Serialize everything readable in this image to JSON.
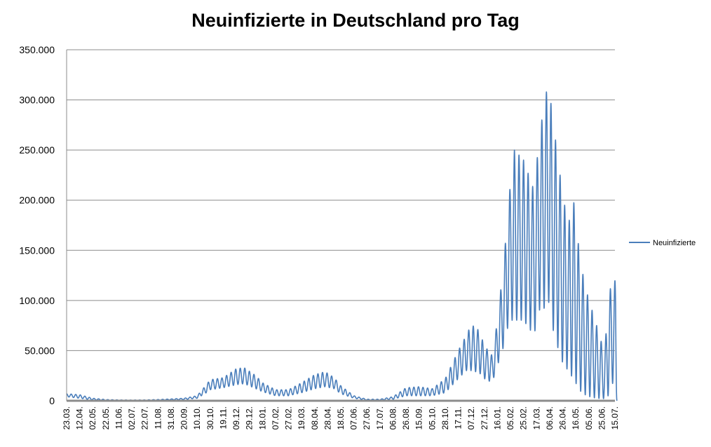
{
  "chart_data": {
    "type": "line",
    "title": "Neuinfizierte in Deutschland pro Tag",
    "xlabel": "",
    "ylabel": "",
    "ylim": [
      0,
      350000
    ],
    "yticks": [
      0,
      50000,
      100000,
      150000,
      200000,
      250000,
      300000,
      350000
    ],
    "ytick_labels": [
      "0",
      "50.000",
      "100.000",
      "150.000",
      "200.000",
      "250.000",
      "300.000",
      "350.000"
    ],
    "x_tick_labels": [
      "23.03.",
      "12.04.",
      "02.05.",
      "22.05.",
      "11.06.",
      "02.07.",
      "22.07.",
      "11.08.",
      "31.08.",
      "20.09.",
      "10.10.",
      "30.10.",
      "19.11.",
      "09.12.",
      "29.12.",
      "18.01.",
      "07.02.",
      "27.02.",
      "19.03.",
      "08.04.",
      "28.04.",
      "18.05.",
      "07.06.",
      "27.06.",
      "17.07.",
      "06.08.",
      "26.08.",
      "15.09.",
      "05.10.",
      "28.10.",
      "17.11.",
      "07.12.",
      "27.12.",
      "16.01.",
      "05.02.",
      "25.02.",
      "17.03.",
      "06.04.",
      "26.04.",
      "16.05.",
      "05.06.",
      "25.06.",
      "15.07."
    ],
    "grid": true,
    "legend_position": "right",
    "series": [
      {
        "name": "Neuinfizierte",
        "color": "#4a7ebb",
        "envelope": [
          {
            "pos": 0.0,
            "peak": 7000,
            "trough": 4000
          },
          {
            "pos": 1.0,
            "peak": 6000,
            "trough": 2500
          },
          {
            "pos": 2.0,
            "peak": 2500,
            "trough": 800
          },
          {
            "pos": 3.0,
            "peak": 1200,
            "trough": 400
          },
          {
            "pos": 4.0,
            "peak": 800,
            "trough": 300
          },
          {
            "pos": 5.0,
            "peak": 700,
            "trough": 300
          },
          {
            "pos": 6.0,
            "peak": 800,
            "trough": 300
          },
          {
            "pos": 7.0,
            "peak": 1200,
            "trough": 500
          },
          {
            "pos": 8.0,
            "peak": 1800,
            "trough": 800
          },
          {
            "pos": 9.0,
            "peak": 2500,
            "trough": 1200
          },
          {
            "pos": 10.0,
            "peak": 5000,
            "trough": 2500
          },
          {
            "pos": 10.7,
            "peak": 16000,
            "trough": 8000
          },
          {
            "pos": 11.0,
            "peak": 21000,
            "trough": 11000
          },
          {
            "pos": 12.0,
            "peak": 23000,
            "trough": 13000
          },
          {
            "pos": 13.0,
            "peak": 32000,
            "trough": 16000
          },
          {
            "pos": 13.6,
            "peak": 33000,
            "trough": 17000
          },
          {
            "pos": 14.5,
            "peak": 25000,
            "trough": 12000
          },
          {
            "pos": 15.0,
            "peak": 18000,
            "trough": 9000
          },
          {
            "pos": 16.0,
            "peak": 11000,
            "trough": 5000
          },
          {
            "pos": 17.0,
            "peak": 11000,
            "trough": 5000
          },
          {
            "pos": 18.0,
            "peak": 18000,
            "trough": 8000
          },
          {
            "pos": 19.0,
            "peak": 26000,
            "trough": 12000
          },
          {
            "pos": 19.8,
            "peak": 29000,
            "trough": 14000
          },
          {
            "pos": 20.5,
            "peak": 23000,
            "trough": 12000
          },
          {
            "pos": 21.0,
            "peak": 15000,
            "trough": 7000
          },
          {
            "pos": 22.0,
            "peak": 5000,
            "trough": 2500
          },
          {
            "pos": 23.0,
            "peak": 1500,
            "trough": 600
          },
          {
            "pos": 24.0,
            "peak": 1500,
            "trough": 600
          },
          {
            "pos": 25.0,
            "peak": 4000,
            "trough": 1500
          },
          {
            "pos": 26.0,
            "peak": 13000,
            "trough": 5000
          },
          {
            "pos": 27.0,
            "peak": 14000,
            "trough": 5000
          },
          {
            "pos": 28.0,
            "peak": 12000,
            "trough": 5000
          },
          {
            "pos": 29.0,
            "peak": 22000,
            "trough": 8000
          },
          {
            "pos": 30.0,
            "peak": 50000,
            "trough": 22000
          },
          {
            "pos": 30.6,
            "peak": 65000,
            "trough": 30000
          },
          {
            "pos": 31.0,
            "peak": 76000,
            "trough": 30000
          },
          {
            "pos": 31.6,
            "peak": 70000,
            "trough": 28000
          },
          {
            "pos": 32.0,
            "peak": 55000,
            "trough": 22000
          },
          {
            "pos": 32.6,
            "peak": 45000,
            "trough": 18000
          },
          {
            "pos": 33.0,
            "peak": 80000,
            "trough": 35000
          },
          {
            "pos": 33.5,
            "peak": 140000,
            "trough": 55000
          },
          {
            "pos": 33.9,
            "peak": 205000,
            "trough": 80000
          },
          {
            "pos": 34.3,
            "peak": 250000,
            "trough": 80000
          },
          {
            "pos": 35.0,
            "peak": 240000,
            "trough": 80000
          },
          {
            "pos": 35.8,
            "peak": 210000,
            "trough": 65000
          },
          {
            "pos": 36.2,
            "peak": 262000,
            "trough": 90000
          },
          {
            "pos": 36.6,
            "peak": 298000,
            "trough": 92000
          },
          {
            "pos": 36.9,
            "peak": 318000,
            "trough": 100000
          },
          {
            "pos": 37.3,
            "peak": 275000,
            "trough": 68000
          },
          {
            "pos": 37.9,
            "peak": 215000,
            "trough": 40000
          },
          {
            "pos": 38.4,
            "peak": 175000,
            "trough": 30000
          },
          {
            "pos": 38.9,
            "peak": 200000,
            "trough": 20000
          },
          {
            "pos": 39.3,
            "peak": 142000,
            "trough": 10000
          },
          {
            "pos": 39.8,
            "peak": 110000,
            "trough": 5000
          },
          {
            "pos": 40.3,
            "peak": 88000,
            "trough": 3000
          },
          {
            "pos": 40.9,
            "peak": 62000,
            "trough": 2000
          },
          {
            "pos": 41.2,
            "peak": 45000,
            "trough": 2000
          },
          {
            "pos": 41.5,
            "peak": 105000,
            "trough": 5000
          },
          {
            "pos": 41.9,
            "peak": 123000,
            "trough": 20000
          },
          {
            "pos": 42.05,
            "peak": 118000,
            "trough": 0
          },
          {
            "pos": 42.15,
            "peak": 0,
            "trough": 0
          }
        ]
      }
    ]
  }
}
